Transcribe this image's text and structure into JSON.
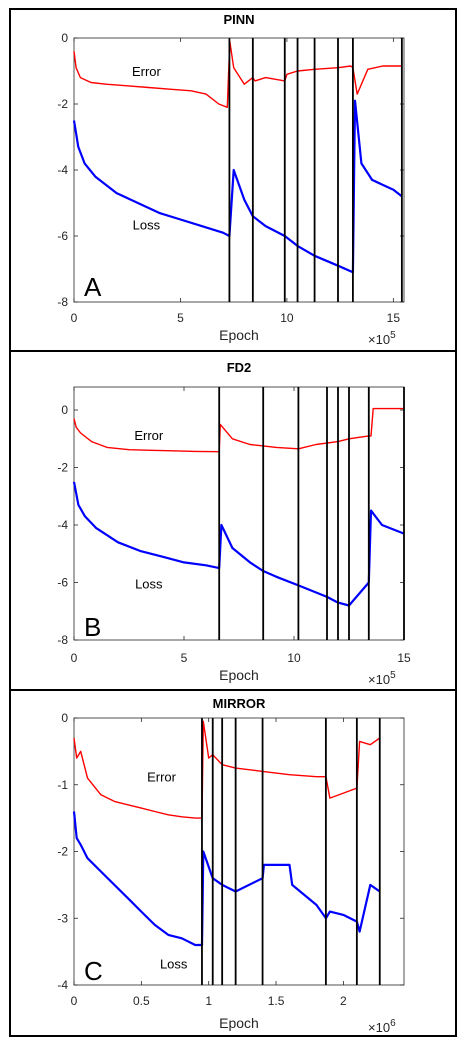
{
  "chart_data": [
    {
      "type": "line",
      "panel_letter": "A",
      "title": "PINN",
      "xlabel": "Epoch",
      "x_multiplier": "×10^5",
      "x_exponent_base": "×10",
      "x_exponent": "5",
      "xlim": [
        0,
        15.5
      ],
      "ylim": [
        -8,
        0
      ],
      "xticks": [
        0,
        5,
        10,
        15
      ],
      "yticks": [
        0,
        -2,
        -4,
        -6,
        -8
      ],
      "vlines": [
        7.3,
        8.4,
        9.9,
        10.5,
        11.3,
        12.4,
        13.1,
        15.4
      ],
      "annotations": [
        {
          "text": "Error",
          "x": 3.4,
          "y": -1.15
        },
        {
          "text": "Loss",
          "x": 3.4,
          "y": -5.8
        }
      ],
      "series": [
        {
          "name": "Error",
          "color": "#ff0000",
          "x": [
            0,
            0.1,
            0.3,
            0.8,
            1.5,
            2.5,
            3.5,
            4.5,
            5.5,
            6.2,
            6.8,
            7.2,
            7.32,
            7.5,
            8.0,
            8.4,
            8.5,
            9.0,
            9.9,
            10.0,
            10.5,
            11.3,
            12.4,
            13.0,
            13.1,
            13.3,
            13.8,
            14.5,
            15.4
          ],
          "y": [
            -0.4,
            -0.9,
            -1.2,
            -1.35,
            -1.4,
            -1.45,
            -1.5,
            -1.55,
            -1.6,
            -1.7,
            -2.0,
            -2.1,
            -0.1,
            -0.9,
            -1.4,
            -1.2,
            -1.3,
            -1.2,
            -1.3,
            -1.1,
            -1.0,
            -0.95,
            -0.9,
            -0.85,
            -0.9,
            -1.7,
            -0.95,
            -0.85,
            -0.85
          ]
        },
        {
          "name": "Loss",
          "color": "#0000ff",
          "x": [
            0,
            0.2,
            0.5,
            1.0,
            2.0,
            3.0,
            4.0,
            5.0,
            6.0,
            7.0,
            7.3,
            7.5,
            8.0,
            8.4,
            9.0,
            9.9,
            10.5,
            11.3,
            12.4,
            13.1,
            13.2,
            13.5,
            14.0,
            15.0,
            15.4
          ],
          "y": [
            -2.5,
            -3.3,
            -3.8,
            -4.2,
            -4.7,
            -5.0,
            -5.3,
            -5.5,
            -5.7,
            -5.9,
            -6.0,
            -4.0,
            -4.9,
            -5.4,
            -5.7,
            -6.0,
            -6.3,
            -6.6,
            -6.9,
            -7.1,
            -1.9,
            -3.8,
            -4.3,
            -4.6,
            -4.8
          ]
        }
      ]
    },
    {
      "type": "line",
      "panel_letter": "B",
      "title": "FD2",
      "xlabel": "Epoch",
      "x_multiplier": "×10^5",
      "x_exponent_base": "×10",
      "x_exponent": "5",
      "xlim": [
        0,
        15
      ],
      "ylim": [
        -8,
        0.8
      ],
      "xticks": [
        0,
        5,
        10,
        15
      ],
      "yticks": [
        0,
        -2,
        -4,
        -6,
        -8
      ],
      "vlines": [
        6.6,
        8.6,
        10.2,
        11.5,
        12.0,
        12.5,
        13.4,
        15.0
      ],
      "annotations": [
        {
          "text": "Error",
          "x": 3.4,
          "y": -1.05
        },
        {
          "text": "Loss",
          "x": 3.4,
          "y": -6.2
        }
      ],
      "series": [
        {
          "name": "Error",
          "color": "#ff0000",
          "x": [
            0,
            0.1,
            0.3,
            0.8,
            1.5,
            2.5,
            3.5,
            4.5,
            5.5,
            6.6,
            6.65,
            7.2,
            8.0,
            8.6,
            9.2,
            10.2,
            11.0,
            12.0,
            12.5,
            13.4,
            13.5,
            13.6,
            14.2,
            15.0
          ],
          "y": [
            -0.3,
            -0.6,
            -0.8,
            -1.1,
            -1.3,
            -1.38,
            -1.4,
            -1.42,
            -1.44,
            -1.45,
            -0.5,
            -1.0,
            -1.2,
            -1.25,
            -1.3,
            -1.35,
            -1.2,
            -1.1,
            -1.0,
            -0.9,
            -0.9,
            0.05,
            0.05,
            0.05
          ]
        },
        {
          "name": "Loss",
          "color": "#0000ff",
          "x": [
            0,
            0.2,
            0.5,
            1.0,
            2.0,
            3.0,
            4.0,
            5.0,
            6.0,
            6.6,
            6.7,
            7.2,
            8.0,
            8.6,
            9.2,
            10.2,
            11.5,
            12.0,
            12.5,
            13.4,
            13.5,
            14.0,
            15.0
          ],
          "y": [
            -2.5,
            -3.3,
            -3.7,
            -4.1,
            -4.6,
            -4.9,
            -5.1,
            -5.3,
            -5.4,
            -5.5,
            -4.0,
            -4.8,
            -5.3,
            -5.6,
            -5.8,
            -6.1,
            -6.5,
            -6.7,
            -6.8,
            -6.0,
            -3.5,
            -4.0,
            -4.3
          ]
        }
      ]
    },
    {
      "type": "line",
      "panel_letter": "C",
      "title": "MIRROR",
      "xlabel": "Epoch",
      "x_multiplier": "×10^6",
      "x_exponent_base": "×10",
      "x_exponent": "6",
      "xlim": [
        0,
        2.45
      ],
      "ylim": [
        -4,
        0
      ],
      "xticks": [
        0,
        0.5,
        1,
        1.5,
        2
      ],
      "xticklabels": [
        "0",
        "0.5",
        "1",
        "1.5",
        "2"
      ],
      "yticks": [
        0,
        -1,
        -2,
        -3,
        -4
      ],
      "vlines": [
        0.95,
        1.03,
        1.1,
        1.2,
        1.4,
        1.87,
        2.1,
        2.27
      ],
      "annotations": [
        {
          "text": "Error",
          "x": 0.65,
          "y": -0.95
        },
        {
          "text": "Loss",
          "x": 0.74,
          "y": -3.75
        }
      ],
      "series": [
        {
          "name": "Error",
          "color": "#ff0000",
          "x": [
            0,
            0.02,
            0.05,
            0.1,
            0.2,
            0.3,
            0.4,
            0.5,
            0.6,
            0.7,
            0.8,
            0.9,
            0.95,
            0.96,
            1.0,
            1.03,
            1.1,
            1.2,
            1.4,
            1.6,
            1.8,
            1.87,
            1.9,
            2.1,
            2.12,
            2.2,
            2.27
          ],
          "y": [
            -0.3,
            -0.6,
            -0.5,
            -0.9,
            -1.15,
            -1.25,
            -1.3,
            -1.35,
            -1.4,
            -1.45,
            -1.48,
            -1.5,
            -1.5,
            -0.05,
            -0.6,
            -0.55,
            -0.7,
            -0.75,
            -0.8,
            -0.85,
            -0.88,
            -0.88,
            -1.2,
            -1.05,
            -0.35,
            -0.4,
            -0.3
          ]
        },
        {
          "name": "Loss",
          "color": "#0000ff",
          "x": [
            0,
            0.02,
            0.05,
            0.1,
            0.2,
            0.3,
            0.4,
            0.5,
            0.6,
            0.7,
            0.8,
            0.9,
            0.95,
            0.96,
            1.03,
            1.1,
            1.2,
            1.4,
            1.41,
            1.6,
            1.62,
            1.8,
            1.87,
            1.9,
            2.0,
            2.1,
            2.12,
            2.2,
            2.27
          ],
          "y": [
            -1.4,
            -1.8,
            -1.9,
            -2.1,
            -2.3,
            -2.5,
            -2.7,
            -2.9,
            -3.1,
            -3.25,
            -3.3,
            -3.4,
            -3.4,
            -2.0,
            -2.4,
            -2.5,
            -2.6,
            -2.4,
            -2.2,
            -2.2,
            -2.5,
            -2.8,
            -3.0,
            -2.9,
            -2.95,
            -3.05,
            -3.2,
            -2.5,
            -2.6
          ]
        }
      ]
    }
  ]
}
